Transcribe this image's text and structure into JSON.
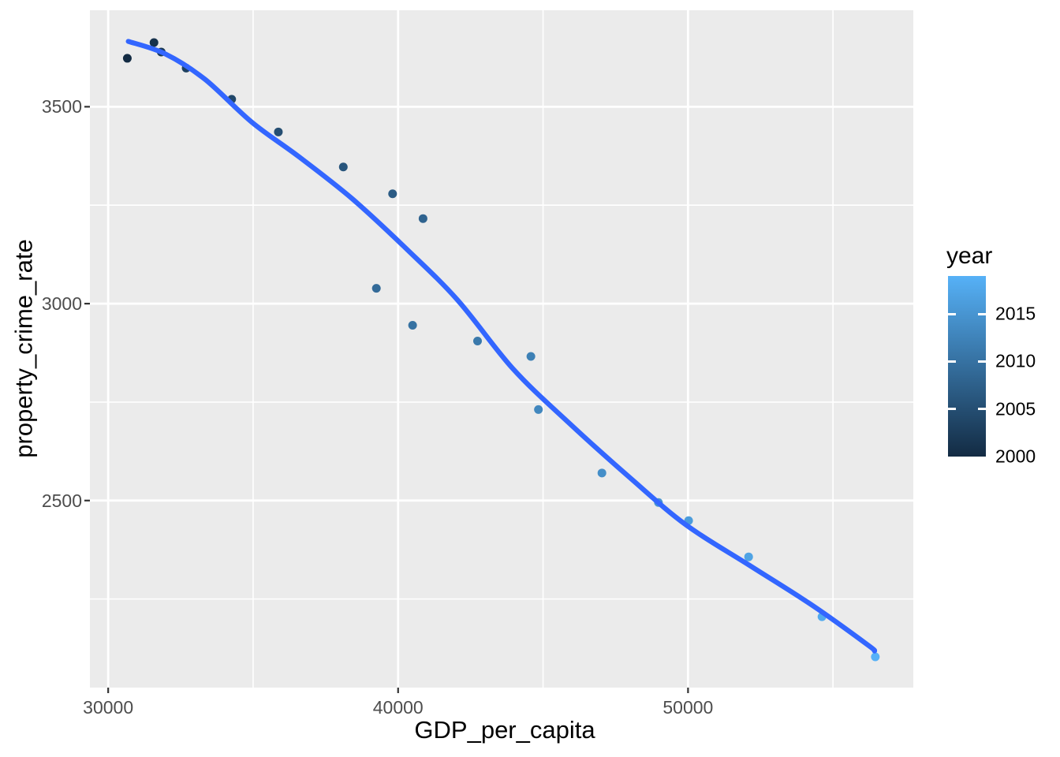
{
  "chart_data": {
    "type": "scatter",
    "title": "",
    "xlabel": "GDP_per_capita",
    "ylabel": "property_crime_rate",
    "xlim": [
      29370,
      57770
    ],
    "ylim": [
      2025,
      3745
    ],
    "grid": true,
    "legend_position": "right",
    "x_ticks": [
      30000,
      40000,
      50000
    ],
    "x_tick_labels": [
      "30000",
      "40000",
      "50000"
    ],
    "x_minor_ticks": [
      35000,
      45000,
      55000
    ],
    "y_ticks": [
      3500,
      3000,
      2500
    ],
    "y_tick_labels": [
      "3500",
      "3000",
      "2500"
    ],
    "y_minor_ticks": [
      3250,
      2750,
      2250
    ],
    "points": [
      {
        "year": 2000,
        "gdp": 30660,
        "crime": 3623
      },
      {
        "year": 2001,
        "gdp": 31580,
        "crime": 3663
      },
      {
        "year": 2002,
        "gdp": 31830,
        "crime": 3639
      },
      {
        "year": 2003,
        "gdp": 32690,
        "crime": 3598
      },
      {
        "year": 2004,
        "gdp": 34260,
        "crime": 3519
      },
      {
        "year": 2005,
        "gdp": 35870,
        "crime": 3436
      },
      {
        "year": 2006,
        "gdp": 38110,
        "crime": 3347
      },
      {
        "year": 2007,
        "gdp": 39810,
        "crime": 3279
      },
      {
        "year": 2008,
        "gdp": 40860,
        "crime": 3216
      },
      {
        "year": 2009,
        "gdp": 39250,
        "crime": 3039
      },
      {
        "year": 2010,
        "gdp": 40500,
        "crime": 2945
      },
      {
        "year": 2011,
        "gdp": 42740,
        "crime": 2905
      },
      {
        "year": 2012,
        "gdp": 44580,
        "crime": 2866
      },
      {
        "year": 2013,
        "gdp": 44840,
        "crime": 2731
      },
      {
        "year": 2014,
        "gdp": 47030,
        "crime": 2570
      },
      {
        "year": 2015,
        "gdp": 48980,
        "crime": 2495
      },
      {
        "year": 2016,
        "gdp": 50020,
        "crime": 2449
      },
      {
        "year": 2017,
        "gdp": 52090,
        "crime": 2357
      },
      {
        "year": 2018,
        "gdp": 54620,
        "crime": 2205
      },
      {
        "year": 2019,
        "gdp": 56460,
        "crime": 2103
      }
    ],
    "smooth_line": {
      "name": "loess-smooth",
      "color": "#3366FF",
      "points": [
        [
          30694,
          3666
        ],
        [
          31973,
          3634
        ],
        [
          33333,
          3570
        ],
        [
          34966,
          3460
        ],
        [
          36599,
          3372
        ],
        [
          38422,
          3266
        ],
        [
          40245,
          3142
        ],
        [
          42041,
          3010
        ],
        [
          43946,
          2836
        ],
        [
          45851,
          2700
        ],
        [
          48027,
          2556
        ],
        [
          49932,
          2438
        ],
        [
          52109,
          2336
        ],
        [
          54286,
          2234
        ],
        [
          56190,
          2134
        ],
        [
          56435,
          2118
        ]
      ]
    },
    "color_scale": {
      "label": "year",
      "low_color": "#132B43",
      "high_color": "#56B1F7",
      "domain": [
        2000,
        2019
      ],
      "ticks": [
        2015,
        2010,
        2005,
        2000
      ],
      "tick_labels": [
        "2015",
        "2010",
        "2005",
        "2000"
      ]
    }
  },
  "theme": {
    "panel_background": "#EBEBEB",
    "grid_color": "#FFFFFF",
    "tick_label_color": "#4D4D4D",
    "axis_title_color": "#000000",
    "tick_mark_color": "#333333",
    "outer_background": "#FFFFFF"
  }
}
